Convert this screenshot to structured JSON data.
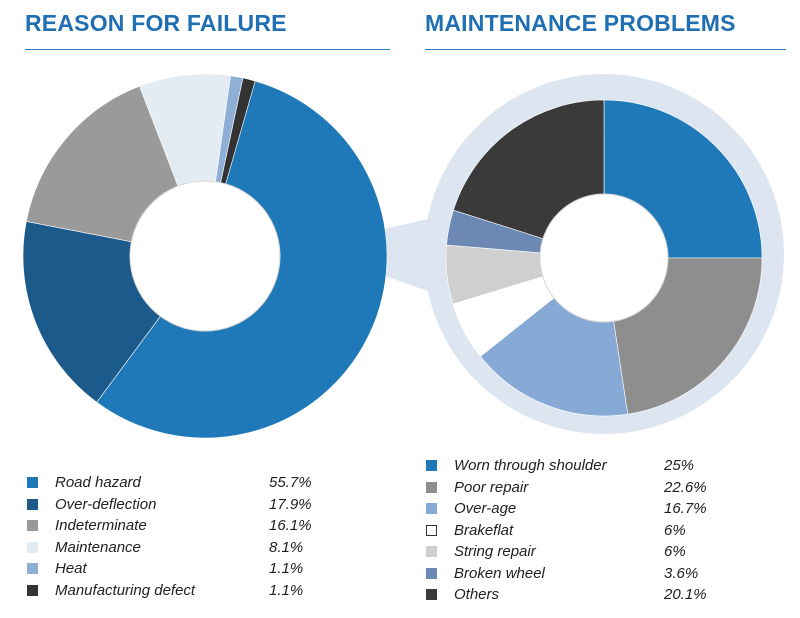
{
  "chart_data": [
    {
      "type": "pie",
      "title": "REASON FOR FAILURE",
      "categories": [
        "Road hazard",
        "Over-deflection",
        "Indeterminate",
        "Maintenance",
        "Heat",
        "Manufacturing defect"
      ],
      "values": [
        55.7,
        17.9,
        16.1,
        8.1,
        1.1,
        1.1
      ],
      "labels": [
        "55.7%",
        "17.9%",
        "16.1%",
        "8.1%",
        "1.1%",
        "1.1%"
      ],
      "colors": [
        "#1f78b8",
        "#1c5a8c",
        "#9a9a9a",
        "#e3ebf3",
        "#8fb0d6",
        "#333333"
      ]
    },
    {
      "type": "pie",
      "title": "MAINTENANCE PROBLEMS",
      "categories": [
        "Worn through shoulder",
        "Poor repair",
        "Over-age",
        "Brakeflat",
        "String repair",
        "Broken wheel",
        "Others"
      ],
      "values": [
        25,
        22.6,
        16.7,
        6,
        6,
        3.6,
        20.1
      ],
      "labels": [
        "25%",
        "22.6%",
        "16.7%",
        "6%",
        "6%",
        "3.6%",
        "20.1%"
      ],
      "colors": [
        "#1f78b8",
        "#8e8e8e",
        "#86a9d6",
        "#ffffff",
        "#cfcfcf",
        "#6b89b4",
        "#3a3a3a"
      ]
    }
  ]
}
